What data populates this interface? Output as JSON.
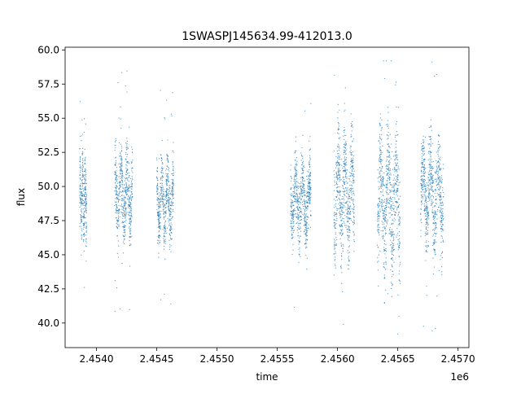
{
  "chart_data": {
    "type": "scatter",
    "title": "1SWASPJ145634.99-412013.0",
    "xlabel": "time",
    "ylabel": "flux",
    "x_offset_label": "1e6",
    "xlim": [
      2453740,
      2457090
    ],
    "ylim": [
      38.2,
      60.2
    ],
    "xticks": [
      2454000,
      2454500,
      2455000,
      2455500,
      2456000,
      2456500,
      2457000
    ],
    "xtick_labels": [
      "2.4540",
      "2.4545",
      "2.4550",
      "2.4555",
      "2.4560",
      "2.4565",
      "2.4570"
    ],
    "yticks": [
      40.0,
      42.5,
      45.0,
      47.5,
      50.0,
      52.5,
      55.0,
      57.5,
      60.0
    ],
    "ytick_labels": [
      "40.0",
      "42.5",
      "45.0",
      "47.5",
      "50.0",
      "52.5",
      "55.0",
      "57.5",
      "60.0"
    ],
    "grid": false,
    "legend": "none",
    "marker_color": "#1f77b4",
    "observing_seasons": [
      {
        "x_start": 2453860,
        "x_end": 2453920,
        "y_low": 44.0,
        "y_high": 53.5,
        "y_center": 49.0
      },
      {
        "x_start": 2454150,
        "x_end": 2454300,
        "y_low": 43.5,
        "y_high": 53.5,
        "y_center": 49.5
      },
      {
        "x_start": 2454500,
        "x_end": 2454640,
        "y_low": 43.5,
        "y_high": 53.0,
        "y_center": 49.0
      },
      {
        "x_start": 2455610,
        "x_end": 2455780,
        "y_low": 44.5,
        "y_high": 54.0,
        "y_center": 49.0
      },
      {
        "x_start": 2455970,
        "x_end": 2456140,
        "y_low": 42.5,
        "y_high": 56.0,
        "y_center": 49.5
      },
      {
        "x_start": 2456330,
        "x_end": 2456520,
        "y_low": 41.5,
        "y_high": 57.0,
        "y_center": 49.0
      },
      {
        "x_start": 2456690,
        "x_end": 2456880,
        "y_low": 43.0,
        "y_high": 55.5,
        "y_center": 49.5
      }
    ]
  }
}
